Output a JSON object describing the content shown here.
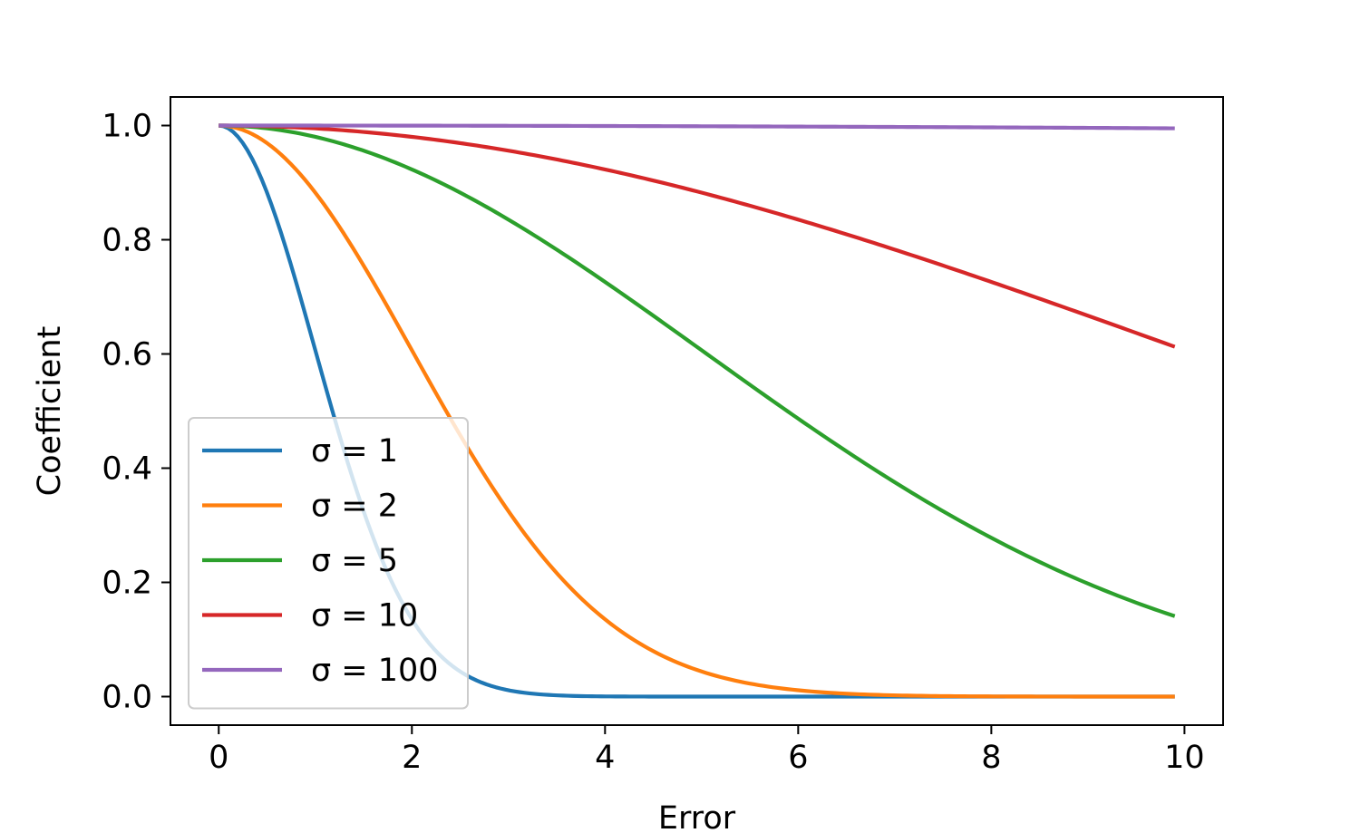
{
  "chart_data": {
    "type": "line",
    "title": "",
    "xlabel": "Error",
    "ylabel": "Coefficient",
    "xlim": [
      -0.5,
      10.4
    ],
    "ylim": [
      -0.05,
      1.05
    ],
    "x_start": 0,
    "x_end": 9.9,
    "xticks": [
      0,
      2,
      4,
      6,
      8,
      10
    ],
    "xtick_labels": [
      "0",
      "2",
      "4",
      "6",
      "8",
      "10"
    ],
    "yticks": [
      0.0,
      0.2,
      0.4,
      0.6,
      0.8,
      1.0
    ],
    "ytick_labels": [
      "0.0",
      "0.2",
      "0.4",
      "0.6",
      "0.8",
      "1.0"
    ],
    "grid": false,
    "legend_position": "lower-left",
    "function": "exp(-x^2 / (2*sigma^2))",
    "series": [
      {
        "name": "σ = 1",
        "sigma": 1,
        "color": "#1f77b4",
        "values_at_ticks": {
          "0": 1.0,
          "2": 0.135,
          "4": 0.0003,
          "6": 0.0,
          "8": 0.0,
          "9.9": 0.0
        }
      },
      {
        "name": "σ = 2",
        "sigma": 2,
        "color": "#ff7f0e",
        "values_at_ticks": {
          "0": 1.0,
          "2": 0.607,
          "4": 0.135,
          "6": 0.011,
          "8": 0.0003,
          "9.9": 0.0
        }
      },
      {
        "name": "σ = 5",
        "sigma": 5,
        "color": "#2ca02c",
        "values_at_ticks": {
          "0": 1.0,
          "2": 0.923,
          "4": 0.726,
          "6": 0.487,
          "8": 0.278,
          "9.9": 0.141
        }
      },
      {
        "name": "σ = 10",
        "sigma": 10,
        "color": "#d62728",
        "values_at_ticks": {
          "0": 1.0,
          "2": 0.98,
          "4": 0.923,
          "6": 0.835,
          "8": 0.726,
          "9.9": 0.613
        }
      },
      {
        "name": "σ = 100",
        "sigma": 100,
        "color": "#9467bd",
        "values_at_ticks": {
          "0": 1.0,
          "2": 1.0,
          "4": 0.999,
          "6": 0.998,
          "8": 0.997,
          "9.9": 0.995
        }
      }
    ]
  }
}
